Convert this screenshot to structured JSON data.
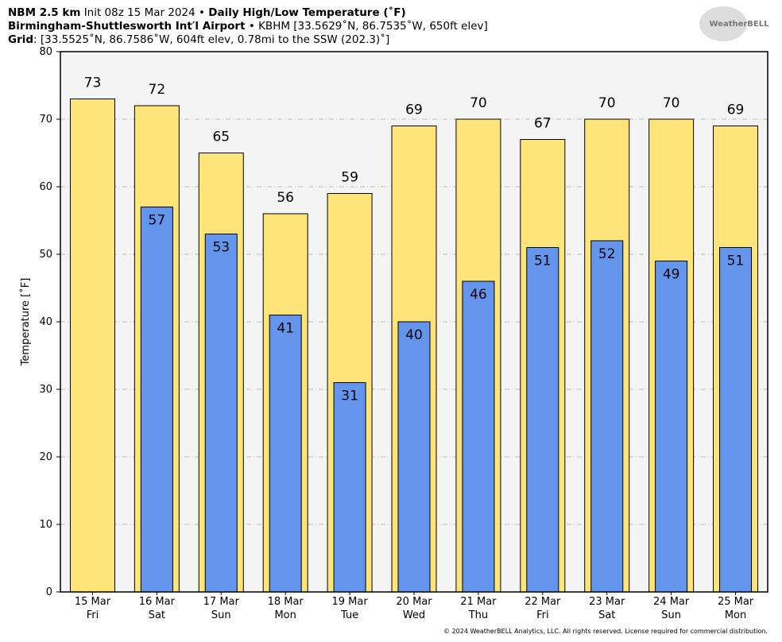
{
  "header": {
    "model": "NBM 2.5 km",
    "init": "Init 08z 15 Mar 2024 •",
    "product": "Daily High/Low Temperature (˚F)",
    "station": "Birmingham-Shuttlesworth Int′l Airport",
    "station_info": "• KBHM [33.5629˚N, 86.7535˚W, 650ft elev]",
    "grid_label": "Grid",
    "grid_info": ": [33.5525˚N, 86.7586˚W, 604ft elev, 0.78mi to the SSW (202.3)˚]",
    "logo": "WeatherBELL"
  },
  "footer": "© 2024 WeatherBELL Analytics, LLC. All rights reserved. License required for commercial distribution.",
  "chart_data": {
    "type": "bar",
    "y_label": "Temperature [˚F]",
    "categories": [
      [
        "15 Mar",
        "Fri"
      ],
      [
        "16 Mar",
        "Sat"
      ],
      [
        "17 Mar",
        "Sun"
      ],
      [
        "18 Mar",
        "Mon"
      ],
      [
        "19 Mar",
        "Tue"
      ],
      [
        "20 Mar",
        "Wed"
      ],
      [
        "21 Mar",
        "Thu"
      ],
      [
        "22 Mar",
        "Fri"
      ],
      [
        "23 Mar",
        "Sat"
      ],
      [
        "24 Mar",
        "Sun"
      ],
      [
        "25 Mar",
        "Mon"
      ]
    ],
    "series": [
      {
        "color": "#ffe47a",
        "values": [
          73,
          72,
          65,
          56,
          59,
          69,
          70,
          67,
          70,
          70,
          69
        ]
      },
      {
        "color": "#6495ed",
        "values": [
          null,
          57,
          53,
          41,
          31,
          40,
          46,
          51,
          52,
          49,
          51
        ]
      }
    ],
    "ylim": [
      0,
      80
    ],
    "yticks": [
      0,
      10,
      20,
      30,
      40,
      50,
      60,
      70,
      80
    ],
    "grid": true
  }
}
